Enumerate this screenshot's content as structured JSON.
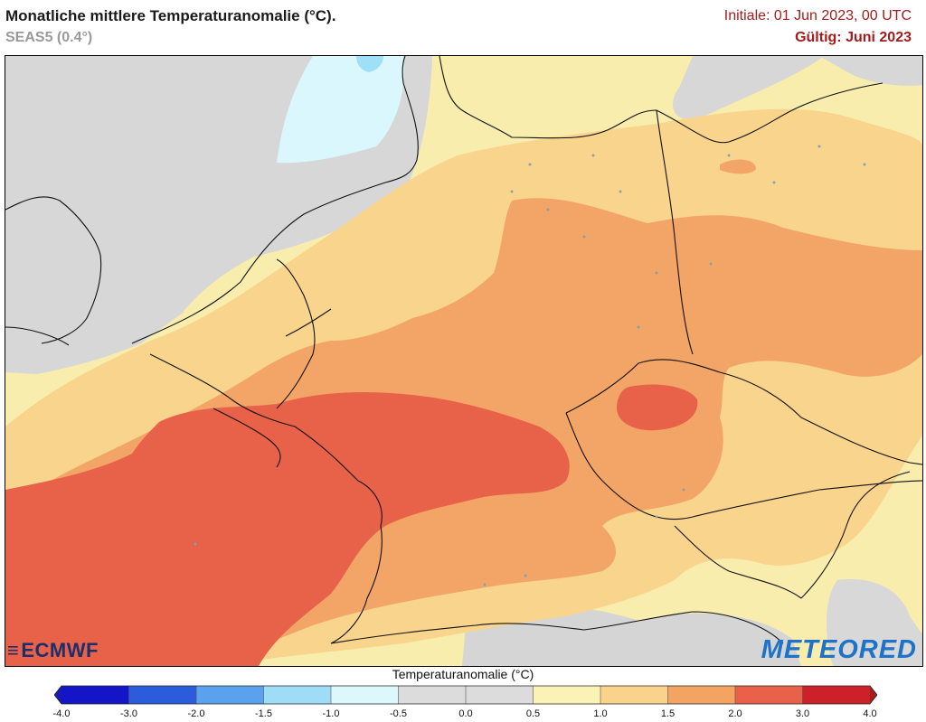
{
  "header": {
    "title": "Monatliche mittlere Temperaturanomalie (°C).",
    "subtitle": "SEAS5 (0.4°)",
    "initial": "Initiale: 01 Jun 2023, 00 UTC",
    "valid": "Gültig: Juni 2023"
  },
  "logos": {
    "ecmwf": "ECMWF",
    "meteored": "METEORED"
  },
  "map": {
    "region": "Central Europe / Germany",
    "variable": "temperature anomaly",
    "ocean_color": "#d9d9d9",
    "max_anomaly_zone": "2.0 to 3.0 °C over eastern France, western Germany and western Czechia"
  },
  "colorbar": {
    "title": "Temperaturanomalie (°C)",
    "ticks": [
      "-4.0",
      "-3.0",
      "-2.0",
      "-1.5",
      "-1.0",
      "-0.5",
      "0.0",
      "0.5",
      "1.0",
      "1.5",
      "2.0",
      "3.0",
      "4.0"
    ],
    "colors": [
      "#1515c8",
      "#2a5cdc",
      "#5aa2ee",
      "#9fdcf7",
      "#dcf8fb",
      "#dcdcdc",
      "#dcdcdc",
      "#fbf3b5",
      "#f9d38c",
      "#f3a462",
      "#ea6149",
      "#cc2129"
    ],
    "end_low": "#1a1ab0",
    "end_high": "#a41e1e"
  }
}
